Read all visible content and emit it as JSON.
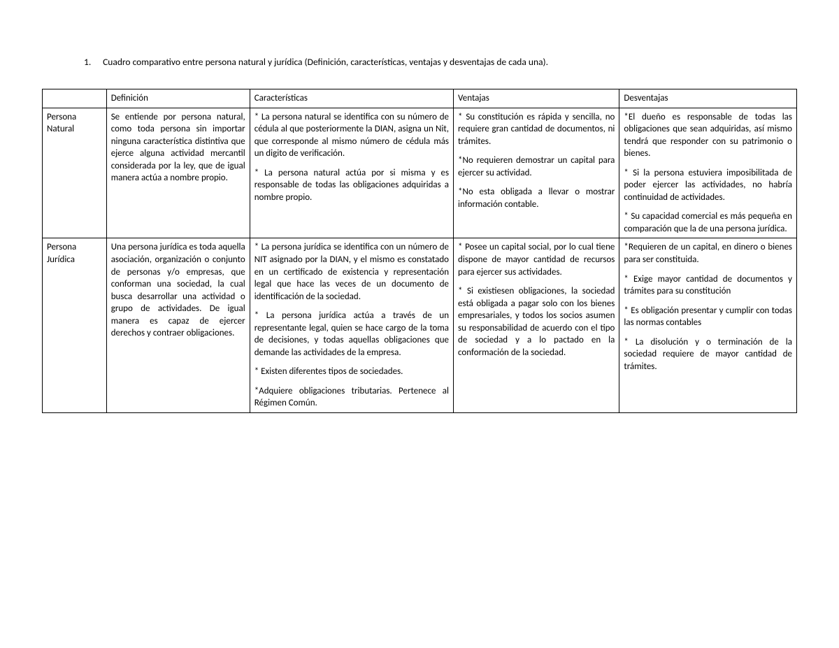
{
  "doc_title_number": "1.",
  "doc_title": "Cuadro comparativo entre persona natural y jurídica (Definición, características, ventajas y desventajas de cada una).",
  "headers": {
    "c0": "",
    "c1": "Definición",
    "c2": "Características",
    "c3": "Ventajas",
    "c4": "Desventajas"
  },
  "r1": {
    "label": "Persona Natural",
    "def": "Se entiende por persona natural, como toda persona sin importar ninguna característica distintiva que ejerce alguna actividad mercantil considerada por la ley, que de igual manera actúa a nombre propio.",
    "car1": "* La persona natural se identifica con su número de cédula al que posteriormente la DIAN, asigna un Nit, que corresponde al mismo número de cédula más un digito de verificación.",
    "car2": "* La persona natural actúa por si misma y es responsable de todas las obligaciones adquiridas a nombre propio.",
    "ven1": "* Su constitución es rápida y sencilla, no requiere gran cantidad de documentos, ni trámites.",
    "ven2": "*No requieren demostrar un capital para ejercer su actividad.",
    "ven3": "*No esta obligada a llevar o mostrar información contable.",
    "des1": "*El dueño es responsable de todas las obligaciones que sean adquiridas, así mismo tendrá que responder con su patrimonio o bienes.",
    "des2": "* Si la persona estuviera imposibilitada de poder ejercer las actividades, no habría continuidad de actividades.",
    "des3": "* Su capacidad comercial es más pequeña en comparación que la de una persona jurídica."
  },
  "r2": {
    "label": "Persona Jurídica",
    "def": "Una persona jurídica es toda aquella asociación, organización o conjunto de personas y/o empresas, que conforman una sociedad, la cual busca desarrollar una actividad o grupo de actividades. De igual manera es capaz de ejercer derechos y contraer obligaciones.",
    "car1": "* La persona jurídica se identifica con un número de NIT asignado por la DIAN, y el mismo es constatado en un certificado de existencia y representación legal que hace las veces de un documento de identificación de la sociedad.",
    "car2": "* La persona jurídica actúa a través de un representante legal, quien se hace cargo de la toma de decisiones, y todas aquellas obligaciones que demande las actividades de la empresa.",
    "car3": "* Existen diferentes tipos de sociedades.",
    "car4": "*Adquiere obligaciones tributarias. Pertenece al Régimen Común.",
    "ven1": "* Posee un capital social, por lo cual tiene dispone de mayor cantidad de recursos para ejercer sus actividades.",
    "ven2": "* Si existiesen obligaciones, la sociedad está obligada a pagar solo con los bienes empresariales, y todos los socios asumen su responsabilidad de acuerdo con el tipo de sociedad y a lo pactado en la conformación de la sociedad.",
    "des1": "*Requieren de un capital, en dinero o bienes para ser constituida.",
    "des2": "* Exige mayor cantidad de documentos y trámites para su constitución",
    "des3": "* Es obligación presentar y cumplir con todas las normas contables",
    "des4": "* La disolución y o terminación de la sociedad requiere de mayor cantidad de trámites."
  }
}
